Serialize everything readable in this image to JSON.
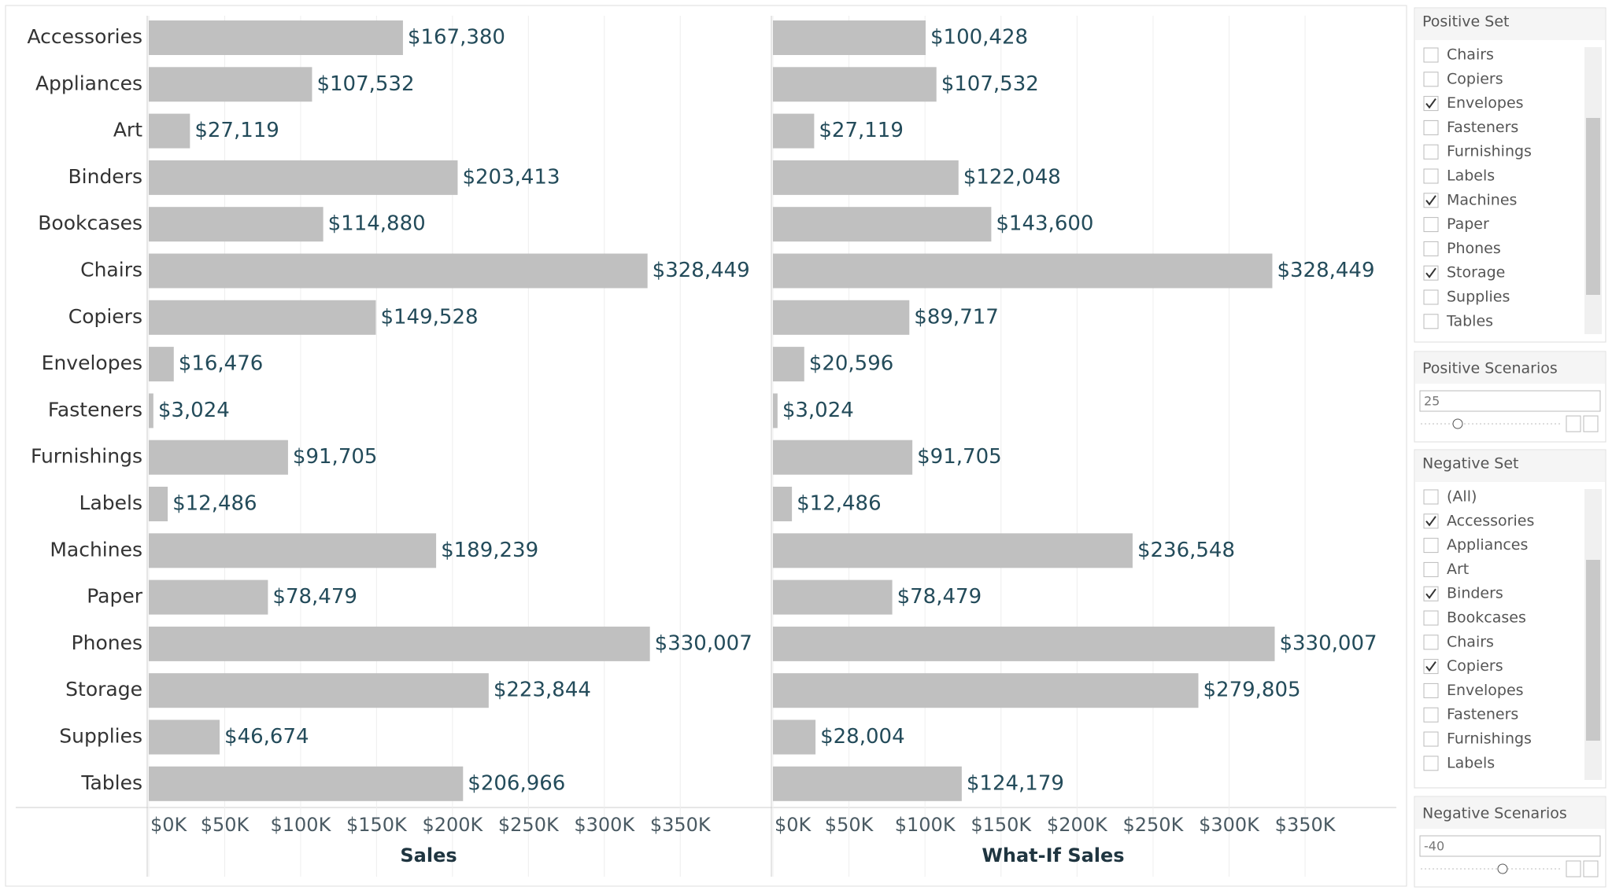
{
  "chart_data": [
    {
      "type": "bar",
      "orientation": "horizontal",
      "x_label": "Sales",
      "color": "#c0c0c0",
      "categories": [
        "Accessories",
        "Appliances",
        "Art",
        "Binders",
        "Bookcases",
        "Chairs",
        "Copiers",
        "Envelopes",
        "Fasteners",
        "Furnishings",
        "Labels",
        "Machines",
        "Paper",
        "Phones",
        "Storage",
        "Supplies",
        "Tables"
      ],
      "values": [
        167380,
        107532,
        27119,
        203413,
        114880,
        328449,
        149528,
        16476,
        3024,
        91705,
        12486,
        189239,
        78479,
        330007,
        223844,
        46674,
        206966
      ],
      "value_labels": [
        "$167,380",
        "$107,532",
        "$27,119",
        "$203,413",
        "$114,880",
        "$328,449",
        "$149,528",
        "$16,476",
        "$3,024",
        "$91,705",
        "$12,486",
        "$189,239",
        "$78,479",
        "$330,007",
        "$223,844",
        "$46,674",
        "$206,966"
      ],
      "xlim": [
        0,
        410000
      ],
      "xticks": [
        {
          "value": 0,
          "label": "$0K"
        },
        {
          "value": 50000,
          "label": "$50K"
        },
        {
          "value": 100000,
          "label": "$100K"
        },
        {
          "value": 150000,
          "label": "$150K"
        },
        {
          "value": 200000,
          "label": "$200K"
        },
        {
          "value": 250000,
          "label": "$250K"
        },
        {
          "value": 300000,
          "label": "$300K"
        },
        {
          "value": 350000,
          "label": "$350K"
        }
      ],
      "grid": true
    },
    {
      "type": "bar",
      "orientation": "horizontal",
      "x_label": "What-If Sales",
      "color": "#c0c0c0",
      "categories": [
        "Accessories",
        "Appliances",
        "Art",
        "Binders",
        "Bookcases",
        "Chairs",
        "Copiers",
        "Envelopes",
        "Fasteners",
        "Furnishings",
        "Labels",
        "Machines",
        "Paper",
        "Phones",
        "Storage",
        "Supplies",
        "Tables"
      ],
      "values": [
        100428,
        107532,
        27119,
        122048,
        143600,
        328449,
        89717,
        20596,
        3024,
        91705,
        12486,
        236548,
        78479,
        330007,
        279805,
        28004,
        124179
      ],
      "value_labels": [
        "$100,428",
        "$107,532",
        "$27,119",
        "$122,048",
        "$143,600",
        "$328,449",
        "$89,717",
        "$20,596",
        "$3,024",
        "$91,705",
        "$12,486",
        "$236,548",
        "$78,479",
        "$330,007",
        "$279,805",
        "$28,004",
        "$124,179"
      ],
      "xlim": [
        0,
        410000
      ],
      "xticks": [
        {
          "value": 0,
          "label": "$0K"
        },
        {
          "value": 50000,
          "label": "$50K"
        },
        {
          "value": 100000,
          "label": "$100K"
        },
        {
          "value": 150000,
          "label": "$150K"
        },
        {
          "value": 200000,
          "label": "$200K"
        },
        {
          "value": 250000,
          "label": "$250K"
        },
        {
          "value": 300000,
          "label": "$300K"
        },
        {
          "value": 350000,
          "label": "$350K"
        }
      ],
      "grid": true
    }
  ],
  "filters": {
    "positive_set": {
      "title": "Positive Set",
      "items": [
        {
          "label": "Chairs",
          "checked": false
        },
        {
          "label": "Copiers",
          "checked": false
        },
        {
          "label": "Envelopes",
          "checked": true
        },
        {
          "label": "Fasteners",
          "checked": false
        },
        {
          "label": "Furnishings",
          "checked": false
        },
        {
          "label": "Labels",
          "checked": false
        },
        {
          "label": "Machines",
          "checked": true
        },
        {
          "label": "Paper",
          "checked": false
        },
        {
          "label": "Phones",
          "checked": false
        },
        {
          "label": "Storage",
          "checked": true
        },
        {
          "label": "Supplies",
          "checked": false
        },
        {
          "label": "Tables",
          "checked": false
        }
      ]
    },
    "positive_scenarios": {
      "title": "Positive Scenarios",
      "value": 25
    },
    "negative_set": {
      "title": "Negative Set",
      "items": [
        {
          "label": "(All)",
          "checked": false
        },
        {
          "label": "Accessories",
          "checked": true
        },
        {
          "label": "Appliances",
          "checked": false
        },
        {
          "label": "Art",
          "checked": false
        },
        {
          "label": "Binders",
          "checked": true
        },
        {
          "label": "Bookcases",
          "checked": false
        },
        {
          "label": "Chairs",
          "checked": false
        },
        {
          "label": "Copiers",
          "checked": true
        },
        {
          "label": "Envelopes",
          "checked": false
        },
        {
          "label": "Fasteners",
          "checked": false
        },
        {
          "label": "Furnishings",
          "checked": false
        },
        {
          "label": "Labels",
          "checked": false
        }
      ]
    },
    "negative_scenarios": {
      "title": "Negative Scenarios",
      "value": -40
    }
  }
}
